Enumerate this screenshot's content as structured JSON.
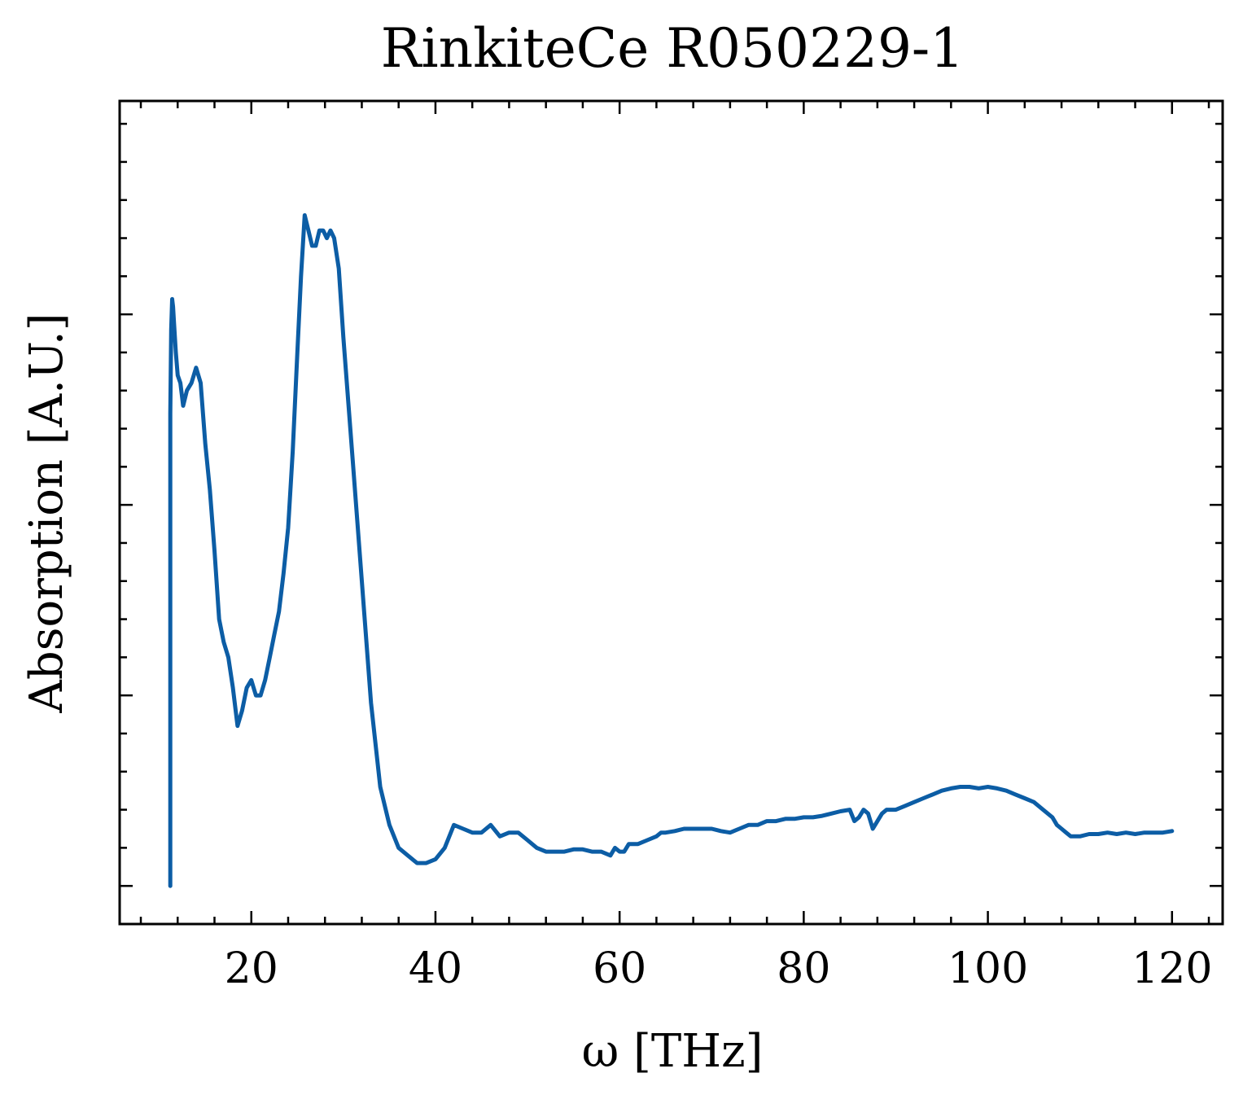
{
  "chart_data": {
    "type": "line",
    "title": "RinkiteCe R050229-1",
    "xlabel": "ω [THz]",
    "ylabel": "Absorption [A.U.]",
    "xlim": [
      5.7,
      125.5
    ],
    "ylim": [
      -0.05,
      1.03
    ],
    "x_major_ticks": [
      20,
      40,
      60,
      80,
      100,
      120
    ],
    "x_minor_step": 4,
    "y_major_ticks": [
      0,
      0.25,
      0.5,
      0.75
    ],
    "y_minor_step": 0.05,
    "show_y_tick_labels": false,
    "grid": false,
    "legend": "none",
    "series": [
      {
        "color": "#0C5DA5",
        "x": [
          11.2,
          11.2,
          11.2,
          11.3,
          11.4,
          11.5,
          11.6,
          11.8,
          12.0,
          12.3,
          12.6,
          13.0,
          13.5,
          14.0,
          14.5,
          15.0,
          15.5,
          16.0,
          16.5,
          17.0,
          17.5,
          18.0,
          18.5,
          19.0,
          19.5,
          20.0,
          20.5,
          21.0,
          21.5,
          22.0,
          22.5,
          23.0,
          23.5,
          24.0,
          24.5,
          25.0,
          25.4,
          25.8,
          26.2,
          26.6,
          27.0,
          27.4,
          27.8,
          28.2,
          28.6,
          29.0,
          29.5,
          30.0,
          31.0,
          32.0,
          33.0,
          34.0,
          35.0,
          36.0,
          37.0,
          38.0,
          39.0,
          40.0,
          41.0,
          42.0,
          43.0,
          44.0,
          45.0,
          46.0,
          47.0,
          48.0,
          49.0,
          50.0,
          51.0,
          52.0,
          53.0,
          54.0,
          55.0,
          56.0,
          57.0,
          58.0,
          59.0,
          59.5,
          60.0,
          60.5,
          61.0,
          62.0,
          63.0,
          64.0,
          64.5,
          65.0,
          66.0,
          67.0,
          68.0,
          69.0,
          70.0,
          71.0,
          72.0,
          73.0,
          74.0,
          75.0,
          76.0,
          77.0,
          78.0,
          79.0,
          80.0,
          81.0,
          82.0,
          83.0,
          84.0,
          85.0,
          85.5,
          86.0,
          86.5,
          87.0,
          87.5,
          88.0,
          88.5,
          89.0,
          90.0,
          91.0,
          92.0,
          93.0,
          94.0,
          95.0,
          96.0,
          97.0,
          98.0,
          99.0,
          100.0,
          101.0,
          102.0,
          103.0,
          104.0,
          105.0,
          106.0,
          107.0,
          107.5,
          108.0,
          108.5,
          109.0,
          109.5,
          110.0,
          111.0,
          112.0,
          113.0,
          114.0,
          115.0,
          116.0,
          117.0,
          118.0,
          119.0,
          120.0
        ],
        "y": [
          0.0,
          0.38,
          0.62,
          0.73,
          0.77,
          0.76,
          0.74,
          0.7,
          0.67,
          0.66,
          0.63,
          0.65,
          0.66,
          0.68,
          0.66,
          0.58,
          0.52,
          0.44,
          0.35,
          0.32,
          0.3,
          0.26,
          0.21,
          0.23,
          0.26,
          0.27,
          0.25,
          0.25,
          0.27,
          0.3,
          0.33,
          0.36,
          0.41,
          0.47,
          0.57,
          0.7,
          0.8,
          0.88,
          0.86,
          0.84,
          0.84,
          0.86,
          0.86,
          0.85,
          0.86,
          0.85,
          0.81,
          0.72,
          0.56,
          0.4,
          0.24,
          0.13,
          0.08,
          0.05,
          0.04,
          0.03,
          0.03,
          0.035,
          0.05,
          0.08,
          0.075,
          0.07,
          0.07,
          0.08,
          0.065,
          0.07,
          0.07,
          0.06,
          0.05,
          0.045,
          0.045,
          0.045,
          0.048,
          0.048,
          0.045,
          0.045,
          0.04,
          0.05,
          0.045,
          0.045,
          0.055,
          0.055,
          0.06,
          0.065,
          0.07,
          0.07,
          0.072,
          0.075,
          0.075,
          0.075,
          0.075,
          0.072,
          0.07,
          0.075,
          0.08,
          0.08,
          0.085,
          0.085,
          0.088,
          0.088,
          0.09,
          0.09,
          0.092,
          0.095,
          0.098,
          0.1,
          0.085,
          0.09,
          0.1,
          0.095,
          0.075,
          0.085,
          0.095,
          0.1,
          0.1,
          0.105,
          0.11,
          0.115,
          0.12,
          0.125,
          0.128,
          0.13,
          0.13,
          0.128,
          0.13,
          0.128,
          0.125,
          0.12,
          0.115,
          0.11,
          0.1,
          0.09,
          0.08,
          0.075,
          0.07,
          0.065,
          0.065,
          0.065,
          0.068,
          0.068,
          0.07,
          0.068,
          0.07,
          0.068,
          0.07,
          0.07,
          0.07,
          0.072
        ]
      }
    ]
  }
}
